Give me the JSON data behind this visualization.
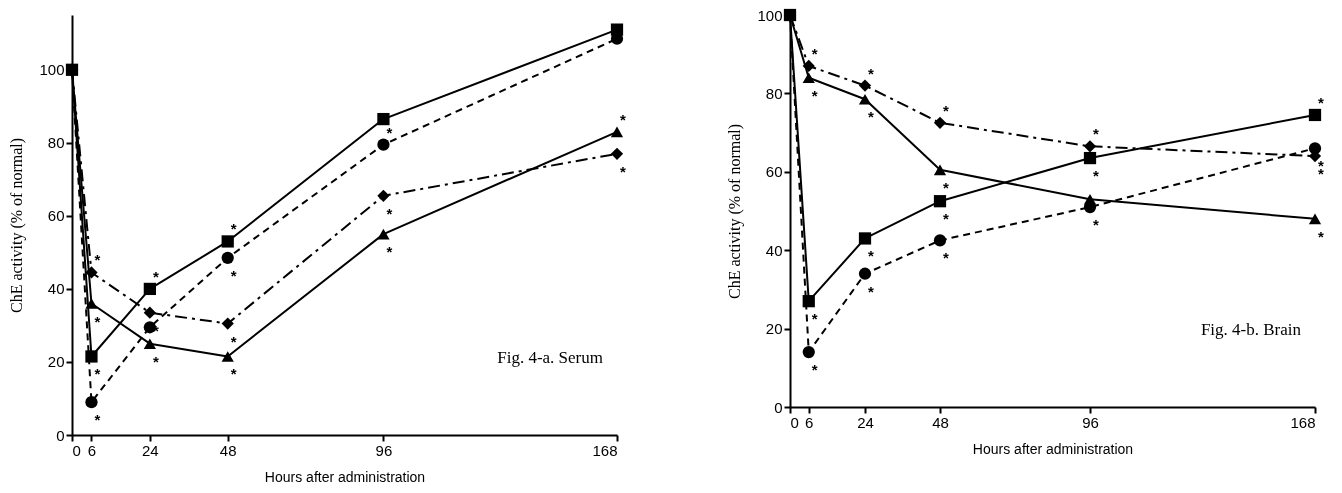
{
  "chart_data": [
    {
      "type": "line",
      "xlabel": "Hours after administration",
      "ylabel": "ChE  activity   (% of normal)",
      "x": [
        0,
        6,
        24,
        48,
        96,
        168
      ],
      "xlim": [
        0,
        168
      ],
      "xticks": [
        0,
        6,
        24,
        48,
        96,
        168
      ],
      "ylim": [
        0,
        115
      ],
      "yticks": [
        0,
        20,
        40,
        60,
        80,
        100
      ],
      "grid": false,
      "series": [
        {
          "color": "#000000",
          "marker": "square",
          "line_style": "solid",
          "values": [
            100,
            21.5,
            40,
            53,
            86.5,
            111
          ]
        },
        {
          "color": "#000000",
          "marker": "circle",
          "line_style": "dashed",
          "values": [
            100,
            9,
            29.5,
            48.5,
            79.5,
            108.5
          ]
        },
        {
          "color": "#000000",
          "marker": "diamond",
          "line_style": "dashdot",
          "values": [
            100,
            44.5,
            33.5,
            30.5,
            65.5,
            77
          ]
        },
        {
          "color": "#000000",
          "marker": "triangle",
          "line_style": "solid",
          "values": [
            100,
            36,
            25,
            21.5,
            55,
            83
          ]
        }
      ],
      "annotations": [
        "Fig. 4-a.  Serum",
        {
          "text": "*",
          "x": 6,
          "y": 44.5
        },
        {
          "text": "*",
          "x": 6,
          "y": 36
        },
        {
          "text": "*",
          "x": 6,
          "y": 21.5
        },
        {
          "text": "*",
          "x": 6,
          "y": 9
        },
        {
          "text": "*",
          "x": 24,
          "y": 40
        },
        {
          "text": "*",
          "x": 24,
          "y": 33.5
        },
        {
          "text": "*",
          "x": 24,
          "y": 25
        },
        {
          "text": "*",
          "x": 48,
          "y": 53
        },
        {
          "text": "*",
          "x": 48,
          "y": 48.5
        },
        {
          "text": "*",
          "x": 48,
          "y": 30.5
        },
        {
          "text": "*",
          "x": 48,
          "y": 21.5
        },
        {
          "text": "*",
          "x": 96,
          "y": 79.5
        },
        {
          "text": "*",
          "x": 96,
          "y": 65.5
        },
        {
          "text": "*",
          "x": 96,
          "y": 55
        },
        {
          "text": "*",
          "x": 168,
          "y": 83
        },
        {
          "text": "*",
          "x": 168,
          "y": 77
        }
      ]
    },
    {
      "type": "line",
      "xlabel": "Hours after administration",
      "ylabel": "ChE  activity   (% of normal)",
      "x": [
        0,
        6,
        24,
        48,
        96,
        168
      ],
      "xlim": [
        0,
        168
      ],
      "xticks": [
        0,
        6,
        24,
        48,
        96,
        168
      ],
      "ylim": [
        0,
        100
      ],
      "yticks": [
        0,
        20,
        40,
        60,
        80,
        100
      ],
      "grid": false,
      "series": [
        {
          "color": "#000000",
          "marker": "square",
          "line_style": "solid",
          "values": [
            100,
            27,
            43,
            52.5,
            63.5,
            74.5
          ]
        },
        {
          "color": "#000000",
          "marker": "circle",
          "line_style": "dashed",
          "values": [
            100,
            14,
            34,
            42.5,
            51,
            66
          ]
        },
        {
          "color": "#000000",
          "marker": "diamond",
          "line_style": "dashdot",
          "values": [
            100,
            87,
            82,
            72.5,
            66.5,
            64
          ]
        },
        {
          "color": "#000000",
          "marker": "triangle",
          "line_style": "solid",
          "values": [
            100,
            84,
            78.5,
            60.5,
            53,
            48
          ]
        }
      ],
      "annotations": [
        "Fig. 4-b.  Brain",
        {
          "text": "*",
          "x": 6,
          "y": 87
        },
        {
          "text": "*",
          "x": 6,
          "y": 84
        },
        {
          "text": "*",
          "x": 6,
          "y": 27
        },
        {
          "text": "*",
          "x": 6,
          "y": 14
        },
        {
          "text": "*",
          "x": 24,
          "y": 82
        },
        {
          "text": "*",
          "x": 24,
          "y": 78.5
        },
        {
          "text": "*",
          "x": 24,
          "y": 43
        },
        {
          "text": "*",
          "x": 24,
          "y": 34
        },
        {
          "text": "*",
          "x": 48,
          "y": 72.5
        },
        {
          "text": "*",
          "x": 48,
          "y": 60.5
        },
        {
          "text": "*",
          "x": 48,
          "y": 52.5
        },
        {
          "text": "*",
          "x": 48,
          "y": 42.5
        },
        {
          "text": "*",
          "x": 96,
          "y": 66.5
        },
        {
          "text": "*",
          "x": 96,
          "y": 63.5
        },
        {
          "text": "*",
          "x": 96,
          "y": 51
        },
        {
          "text": "*",
          "x": 168,
          "y": 74.5
        },
        {
          "text": "*",
          "x": 168,
          "y": 66
        },
        {
          "text": "*",
          "x": 168,
          "y": 64
        },
        {
          "text": "*",
          "x": 168,
          "y": 48
        }
      ]
    }
  ]
}
